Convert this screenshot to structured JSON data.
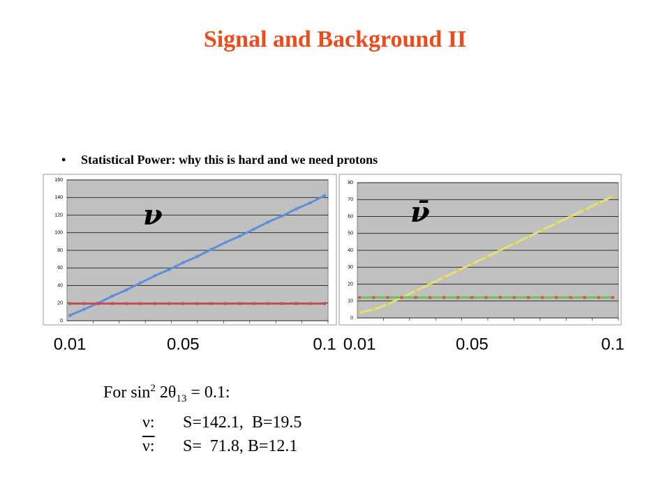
{
  "header": {
    "title": "Signal and Background II"
  },
  "bullet": "Statistical Power: why this is hard and we need protons",
  "chart_data": [
    {
      "type": "line",
      "annotation": "ν",
      "x": [
        0.01,
        0.015,
        0.02,
        0.025,
        0.03,
        0.035,
        0.04,
        0.045,
        0.05,
        0.055,
        0.06,
        0.065,
        0.07,
        0.075,
        0.08,
        0.085,
        0.09,
        0.095,
        0.1
      ],
      "series": [
        {
          "color": "#5b8fd8",
          "marker_color": "#5b8fd8",
          "values": [
            6,
            13,
            20,
            28,
            35,
            43,
            51,
            58,
            66,
            73,
            81,
            89,
            96,
            104,
            112,
            119,
            127,
            134,
            142.1
          ]
        },
        {
          "color": "#c0504d",
          "marker_color": "#c0504d",
          "values": [
            19.5,
            19.5,
            19.5,
            19.5,
            19.5,
            19.5,
            19.5,
            19.5,
            19.5,
            19.5,
            19.5,
            19.5,
            19.5,
            19.5,
            19.5,
            19.5,
            19.5,
            19.5,
            19.5
          ]
        }
      ],
      "xlim": [
        0.0075,
        0.1
      ],
      "xticks": [
        0.01,
        0.05,
        0.1
      ],
      "ylim": [
        0,
        160
      ],
      "yticks": [
        0,
        20,
        40,
        60,
        80,
        100,
        120,
        140,
        160
      ],
      "grid": true
    },
    {
      "type": "line",
      "annotation": "ν̄",
      "x": [
        0.01,
        0.015,
        0.02,
        0.025,
        0.03,
        0.035,
        0.04,
        0.045,
        0.05,
        0.055,
        0.06,
        0.065,
        0.07,
        0.075,
        0.08,
        0.085,
        0.09,
        0.095,
        0.1
      ],
      "series": [
        {
          "color": "#e6e07a",
          "marker_color": "#d8cf4a",
          "values": [
            3,
            5,
            8,
            12,
            16,
            20,
            24,
            28,
            32,
            36,
            40,
            44,
            48,
            52,
            56,
            60,
            64,
            68,
            71.8
          ]
        },
        {
          "color": "#6fbf5a",
          "marker_color": "#d9534f",
          "values": [
            12.1,
            12.1,
            12.1,
            12.1,
            12.1,
            12.1,
            12.1,
            12.1,
            12.1,
            12.1,
            12.1,
            12.1,
            12.1,
            12.1,
            12.1,
            12.1,
            12.1,
            12.1,
            12.1
          ]
        }
      ],
      "xlim": [
        0.0075,
        0.1
      ],
      "xticks": [
        0.01,
        0.05,
        0.1
      ],
      "ylim": [
        0,
        80
      ],
      "yticks": [
        0,
        10,
        20,
        30,
        40,
        50,
        60,
        70,
        80
      ],
      "grid": true
    }
  ],
  "formula": {
    "prefix": "For sin",
    "sup": "2",
    "mid": " 2θ",
    "sub": "13",
    "suffix": " = 0.1:"
  },
  "results": [
    {
      "label": "ν:",
      "text": "S=142.1,  B=19.5"
    },
    {
      "label": "ν:",
      "text": "S=  71.8, B=12.1"
    }
  ]
}
